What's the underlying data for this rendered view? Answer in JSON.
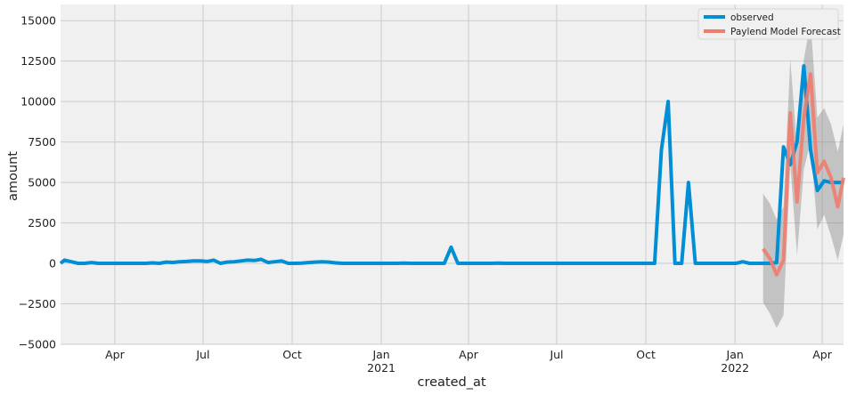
{
  "chart_data": {
    "type": "line",
    "xlabel": "created_at",
    "ylabel": "amount",
    "ylim": [
      -5000,
      16000
    ],
    "xlim": [
      "2020-02-05",
      "2022-04-23"
    ],
    "grid": true,
    "legend_position": "top-right",
    "x_ticks": [
      {
        "date": "2020-04-01",
        "label": "Apr",
        "sub": ""
      },
      {
        "date": "2020-07-01",
        "label": "Jul",
        "sub": ""
      },
      {
        "date": "2020-10-01",
        "label": "Oct",
        "sub": ""
      },
      {
        "date": "2021-01-01",
        "label": "Jan",
        "sub": "2021"
      },
      {
        "date": "2021-04-01",
        "label": "Apr",
        "sub": ""
      },
      {
        "date": "2021-07-01",
        "label": "Jul",
        "sub": ""
      },
      {
        "date": "2021-10-01",
        "label": "Oct",
        "sub": ""
      },
      {
        "date": "2022-01-01",
        "label": "Jan",
        "sub": "2022"
      },
      {
        "date": "2022-04-01",
        "label": "Apr",
        "sub": ""
      }
    ],
    "y_ticks": [
      -5000,
      -2500,
      0,
      2500,
      5000,
      7500,
      10000,
      12500,
      15000
    ],
    "y_tick_labels": [
      "−5000",
      "−2500",
      "0",
      "2500",
      "5000",
      "7500",
      "10000",
      "12500",
      "15000"
    ],
    "series": [
      {
        "name": "observed",
        "color": "#008fd5",
        "points": [
          [
            "2020-02-05",
            0
          ],
          [
            "2020-02-09",
            200
          ],
          [
            "2020-02-16",
            100
          ],
          [
            "2020-02-23",
            0
          ],
          [
            "2020-03-01",
            0
          ],
          [
            "2020-03-08",
            50
          ],
          [
            "2020-03-15",
            0
          ],
          [
            "2020-03-22",
            0
          ],
          [
            "2020-03-29",
            0
          ],
          [
            "2020-04-05",
            0
          ],
          [
            "2020-04-12",
            0
          ],
          [
            "2020-04-19",
            0
          ],
          [
            "2020-04-26",
            0
          ],
          [
            "2020-05-03",
            0
          ],
          [
            "2020-05-10",
            30
          ],
          [
            "2020-05-17",
            0
          ],
          [
            "2020-05-24",
            80
          ],
          [
            "2020-05-31",
            60
          ],
          [
            "2020-06-07",
            100
          ],
          [
            "2020-06-14",
            120
          ],
          [
            "2020-06-21",
            150
          ],
          [
            "2020-06-28",
            150
          ],
          [
            "2020-07-05",
            120
          ],
          [
            "2020-07-12",
            200
          ],
          [
            "2020-07-19",
            0
          ],
          [
            "2020-07-26",
            80
          ],
          [
            "2020-08-02",
            100
          ],
          [
            "2020-08-09",
            150
          ],
          [
            "2020-08-16",
            200
          ],
          [
            "2020-08-23",
            180
          ],
          [
            "2020-08-30",
            250
          ],
          [
            "2020-09-06",
            50
          ],
          [
            "2020-09-13",
            100
          ],
          [
            "2020-09-20",
            150
          ],
          [
            "2020-09-27",
            0
          ],
          [
            "2020-10-04",
            0
          ],
          [
            "2020-10-11",
            20
          ],
          [
            "2020-10-18",
            50
          ],
          [
            "2020-10-25",
            80
          ],
          [
            "2020-11-01",
            100
          ],
          [
            "2020-11-08",
            80
          ],
          [
            "2020-11-15",
            30
          ],
          [
            "2020-11-22",
            0
          ],
          [
            "2020-11-29",
            0
          ],
          [
            "2020-12-06",
            0
          ],
          [
            "2020-12-13",
            0
          ],
          [
            "2020-12-20",
            0
          ],
          [
            "2020-12-27",
            0
          ],
          [
            "2021-01-03",
            0
          ],
          [
            "2021-01-10",
            0
          ],
          [
            "2021-01-17",
            0
          ],
          [
            "2021-01-24",
            20
          ],
          [
            "2021-01-31",
            0
          ],
          [
            "2021-02-07",
            0
          ],
          [
            "2021-02-14",
            0
          ],
          [
            "2021-02-21",
            0
          ],
          [
            "2021-02-28",
            0
          ],
          [
            "2021-03-07",
            0
          ],
          [
            "2021-03-14",
            1000
          ],
          [
            "2021-03-21",
            0
          ],
          [
            "2021-03-28",
            0
          ],
          [
            "2021-04-04",
            0
          ],
          [
            "2021-04-11",
            0
          ],
          [
            "2021-04-18",
            0
          ],
          [
            "2021-04-25",
            0
          ],
          [
            "2021-05-02",
            20
          ],
          [
            "2021-05-09",
            0
          ],
          [
            "2021-05-16",
            0
          ],
          [
            "2021-05-23",
            0
          ],
          [
            "2021-05-30",
            0
          ],
          [
            "2021-06-06",
            0
          ],
          [
            "2021-06-13",
            0
          ],
          [
            "2021-06-20",
            0
          ],
          [
            "2021-06-27",
            0
          ],
          [
            "2021-07-04",
            0
          ],
          [
            "2021-07-11",
            0
          ],
          [
            "2021-07-18",
            0
          ],
          [
            "2021-07-25",
            0
          ],
          [
            "2021-08-01",
            0
          ],
          [
            "2021-08-08",
            0
          ],
          [
            "2021-08-15",
            0
          ],
          [
            "2021-08-22",
            0
          ],
          [
            "2021-08-29",
            0
          ],
          [
            "2021-09-05",
            0
          ],
          [
            "2021-09-12",
            0
          ],
          [
            "2021-09-19",
            0
          ],
          [
            "2021-09-26",
            0
          ],
          [
            "2021-10-03",
            0
          ],
          [
            "2021-10-10",
            0
          ],
          [
            "2021-10-17",
            7000
          ],
          [
            "2021-10-24",
            10000
          ],
          [
            "2021-10-31",
            0
          ],
          [
            "2021-11-07",
            0
          ],
          [
            "2021-11-14",
            5000
          ],
          [
            "2021-11-21",
            0
          ],
          [
            "2021-11-28",
            0
          ],
          [
            "2021-12-05",
            0
          ],
          [
            "2021-12-12",
            0
          ],
          [
            "2021-12-19",
            0
          ],
          [
            "2021-12-26",
            0
          ],
          [
            "2022-01-02",
            0
          ],
          [
            "2022-01-09",
            100
          ],
          [
            "2022-01-16",
            0
          ],
          [
            "2022-01-23",
            0
          ],
          [
            "2022-01-30",
            0
          ],
          [
            "2022-02-06",
            0
          ],
          [
            "2022-02-13",
            50
          ],
          [
            "2022-02-20",
            7200
          ],
          [
            "2022-02-27",
            6100
          ],
          [
            "2022-03-06",
            7500
          ],
          [
            "2022-03-13",
            12200
          ],
          [
            "2022-03-20",
            7000
          ],
          [
            "2022-03-27",
            4500
          ],
          [
            "2022-04-03",
            5100
          ],
          [
            "2022-04-10",
            5000
          ],
          [
            "2022-04-17",
            5000
          ],
          [
            "2022-04-23",
            5000
          ]
        ]
      },
      {
        "name": "Paylend Model Forecast",
        "color": "#f07c6e",
        "points": [
          [
            "2022-01-30",
            900
          ],
          [
            "2022-02-06",
            300
          ],
          [
            "2022-02-13",
            -700
          ],
          [
            "2022-02-20",
            200
          ],
          [
            "2022-02-27",
            9300
          ],
          [
            "2022-03-06",
            3800
          ],
          [
            "2022-03-13",
            9000
          ],
          [
            "2022-03-20",
            11700
          ],
          [
            "2022-03-27",
            5600
          ],
          [
            "2022-04-03",
            6300
          ],
          [
            "2022-04-10",
            5300
          ],
          [
            "2022-04-17",
            3500
          ],
          [
            "2022-04-23",
            5300
          ]
        ],
        "band": {
          "lower": [
            [
              "2022-01-30",
              -2400
            ],
            [
              "2022-02-06",
              -3100
            ],
            [
              "2022-02-13",
              -4000
            ],
            [
              "2022-02-20",
              -3200
            ],
            [
              "2022-02-27",
              6100
            ],
            [
              "2022-03-06",
              500
            ],
            [
              "2022-03-13",
              5800
            ],
            [
              "2022-03-20",
              7500
            ],
            [
              "2022-03-27",
              2100
            ],
            [
              "2022-04-03",
              3000
            ],
            [
              "2022-04-10",
              1700
            ],
            [
              "2022-04-17",
              200
            ],
            [
              "2022-04-23",
              1800
            ]
          ],
          "upper": [
            [
              "2022-01-30",
              4300
            ],
            [
              "2022-02-06",
              3700
            ],
            [
              "2022-02-13",
              2700
            ],
            [
              "2022-02-20",
              3500
            ],
            [
              "2022-02-27",
              12600
            ],
            [
              "2022-03-06",
              7200
            ],
            [
              "2022-03-13",
              12600
            ],
            [
              "2022-03-20",
              14900
            ],
            [
              "2022-03-27",
              9000
            ],
            [
              "2022-04-03",
              9600
            ],
            [
              "2022-04-10",
              8600
            ],
            [
              "2022-04-17",
              6900
            ],
            [
              "2022-04-23",
              8600
            ]
          ],
          "color": "#8b8b8b"
        }
      }
    ]
  }
}
